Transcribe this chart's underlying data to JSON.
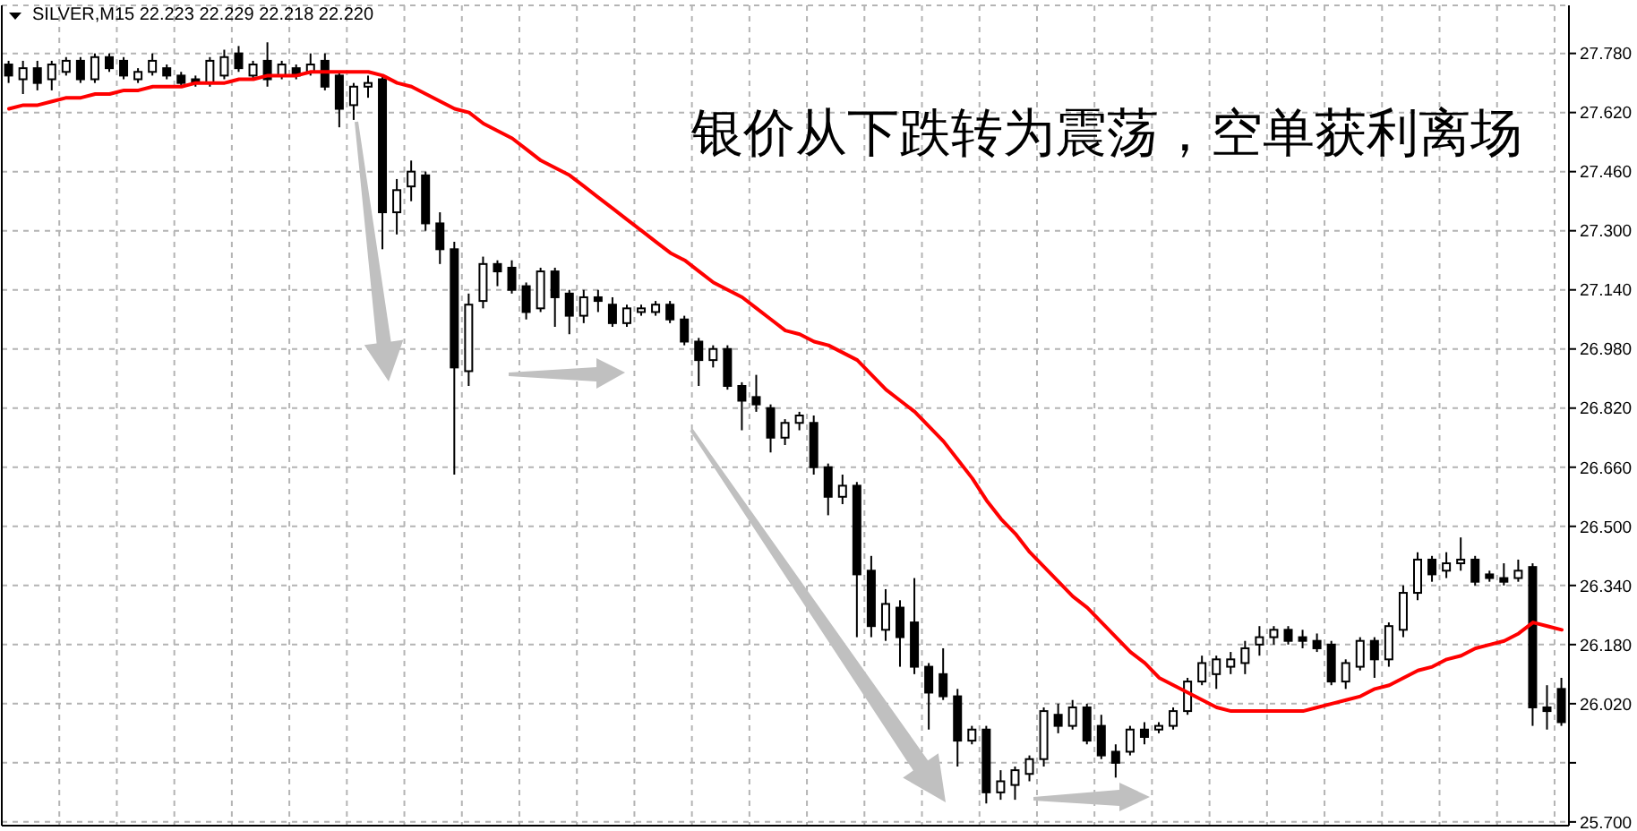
{
  "chart_data": {
    "type": "candlestick",
    "title": "SILVER,M15 22.223 22.229 22.218 22.220",
    "annotations": [
      "银价从下跌转为震荡，空单获利离场"
    ],
    "categories": [
      null,
      null,
      null,
      null,
      null,
      null,
      null,
      null,
      null,
      null,
      null,
      null,
      null,
      null,
      null,
      null,
      null,
      null,
      null,
      null,
      null,
      null,
      null,
      null,
      null,
      null,
      null,
      null,
      null,
      null,
      null,
      null,
      null,
      null,
      null,
      null,
      null,
      null,
      null,
      null,
      null,
      null,
      null,
      null,
      null,
      null,
      null,
      null,
      null,
      null,
      null,
      null,
      null,
      null,
      null,
      null,
      null,
      null,
      null,
      null,
      null,
      null,
      null,
      null,
      null,
      null,
      null,
      null,
      null,
      null,
      null,
      null,
      null,
      null,
      null,
      null,
      null,
      null,
      null,
      null,
      null,
      null,
      null,
      null,
      null,
      null,
      null,
      null,
      null,
      null,
      null,
      null,
      null,
      null,
      null,
      null,
      null,
      null,
      null,
      null,
      null,
      null,
      null,
      null,
      null,
      null,
      null,
      null,
      null
    ],
    "ohlc": [
      [
        27.75,
        27.76,
        27.7,
        27.72
      ],
      [
        27.71,
        27.76,
        27.67,
        27.74
      ],
      [
        27.74,
        27.76,
        27.68,
        27.7
      ],
      [
        27.71,
        27.76,
        27.68,
        27.75
      ],
      [
        27.73,
        27.77,
        27.72,
        27.76
      ],
      [
        27.76,
        27.77,
        27.7,
        27.71
      ],
      [
        27.71,
        27.78,
        27.7,
        27.77
      ],
      [
        27.77,
        27.78,
        27.73,
        27.74
      ],
      [
        27.76,
        27.77,
        27.71,
        27.72
      ],
      [
        27.71,
        27.74,
        27.7,
        27.73
      ],
      [
        27.73,
        27.78,
        27.72,
        27.76
      ],
      [
        27.74,
        27.75,
        27.71,
        27.72
      ],
      [
        27.72,
        27.73,
        27.69,
        27.7
      ],
      [
        27.71,
        27.72,
        27.69,
        27.7
      ],
      [
        27.7,
        27.77,
        27.69,
        27.76
      ],
      [
        27.72,
        27.79,
        27.71,
        27.77
      ],
      [
        27.78,
        27.8,
        27.73,
        27.74
      ],
      [
        27.72,
        27.76,
        27.71,
        27.75
      ],
      [
        27.76,
        27.81,
        27.69,
        27.71
      ],
      [
        27.72,
        27.76,
        27.71,
        27.75
      ],
      [
        27.74,
        27.75,
        27.71,
        27.72
      ],
      [
        27.73,
        27.78,
        27.72,
        27.75
      ],
      [
        27.76,
        27.78,
        27.68,
        27.69
      ],
      [
        27.72,
        27.73,
        27.58,
        27.63
      ],
      [
        27.64,
        27.7,
        27.6,
        27.69
      ],
      [
        27.69,
        27.72,
        27.66,
        27.7
      ],
      [
        27.71,
        27.72,
        27.25,
        27.35
      ],
      [
        27.35,
        27.44,
        27.29,
        27.41
      ],
      [
        27.42,
        27.49,
        27.38,
        27.46
      ],
      [
        27.45,
        27.46,
        27.3,
        27.32
      ],
      [
        27.32,
        27.35,
        27.21,
        27.25
      ],
      [
        27.25,
        27.27,
        26.64,
        26.93
      ],
      [
        26.92,
        27.13,
        26.88,
        27.1
      ],
      [
        27.11,
        27.23,
        27.09,
        27.21
      ],
      [
        27.21,
        27.22,
        27.15,
        27.19
      ],
      [
        27.2,
        27.22,
        27.13,
        27.14
      ],
      [
        27.15,
        27.16,
        27.06,
        27.08
      ],
      [
        27.09,
        27.2,
        27.08,
        27.19
      ],
      [
        27.19,
        27.2,
        27.04,
        27.12
      ],
      [
        27.13,
        27.14,
        27.02,
        27.07
      ],
      [
        27.07,
        27.14,
        27.05,
        27.12
      ],
      [
        27.12,
        27.14,
        27.08,
        27.11
      ],
      [
        27.1,
        27.12,
        27.04,
        27.05
      ],
      [
        27.05,
        27.1,
        27.04,
        27.09
      ],
      [
        27.08,
        27.1,
        27.07,
        27.09
      ],
      [
        27.08,
        27.11,
        27.07,
        27.1
      ],
      [
        27.1,
        27.11,
        27.05,
        27.06
      ],
      [
        27.06,
        27.07,
        26.99,
        27.0
      ],
      [
        27.0,
        27.01,
        26.88,
        26.95
      ],
      [
        26.95,
        26.99,
        26.93,
        26.98
      ],
      [
        26.98,
        26.99,
        26.87,
        26.88
      ],
      [
        26.88,
        26.89,
        26.76,
        26.84
      ],
      [
        26.85,
        26.91,
        26.81,
        26.83
      ],
      [
        26.82,
        26.83,
        26.7,
        26.74
      ],
      [
        26.74,
        26.79,
        26.72,
        26.78
      ],
      [
        26.78,
        26.81,
        26.76,
        26.8
      ],
      [
        26.78,
        26.8,
        26.64,
        26.66
      ],
      [
        26.66,
        26.67,
        26.53,
        26.58
      ],
      [
        26.58,
        26.64,
        26.56,
        26.61
      ],
      [
        26.61,
        26.62,
        26.2,
        26.37
      ],
      [
        26.38,
        26.42,
        26.2,
        26.23
      ],
      [
        26.22,
        26.33,
        26.19,
        26.29
      ],
      [
        26.28,
        26.3,
        26.12,
        26.2
      ],
      [
        26.24,
        26.36,
        26.1,
        26.12
      ],
      [
        26.12,
        26.13,
        25.95,
        26.05
      ],
      [
        26.1,
        26.17,
        26.03,
        26.04
      ],
      [
        26.04,
        26.06,
        25.85,
        25.92
      ],
      [
        25.92,
        25.96,
        25.91,
        25.95
      ],
      [
        25.95,
        25.96,
        25.75,
        25.78
      ],
      [
        25.78,
        25.84,
        25.76,
        25.81
      ],
      [
        25.8,
        25.85,
        25.76,
        25.84
      ],
      [
        25.83,
        25.88,
        25.81,
        25.87
      ],
      [
        25.87,
        26.01,
        25.85,
        26.0
      ],
      [
        25.99,
        26.02,
        25.94,
        25.96
      ],
      [
        25.96,
        26.03,
        25.95,
        26.01
      ],
      [
        26.01,
        26.02,
        25.91,
        25.92
      ],
      [
        25.96,
        25.99,
        25.87,
        25.88
      ],
      [
        25.89,
        25.91,
        25.82,
        25.86
      ],
      [
        25.89,
        25.96,
        25.88,
        25.95
      ],
      [
        25.95,
        25.97,
        25.91,
        25.93
      ],
      [
        25.95,
        25.97,
        25.94,
        25.96
      ],
      [
        25.96,
        26.01,
        25.95,
        26.0
      ],
      [
        26.0,
        26.09,
        25.99,
        26.08
      ],
      [
        26.08,
        26.15,
        26.07,
        26.13
      ],
      [
        26.1,
        26.15,
        26.06,
        26.14
      ],
      [
        26.12,
        26.16,
        26.1,
        26.14
      ],
      [
        26.13,
        26.19,
        26.1,
        26.17
      ],
      [
        26.18,
        26.23,
        26.15,
        26.2
      ],
      [
        26.2,
        26.23,
        26.18,
        26.22
      ],
      [
        26.22,
        26.23,
        26.18,
        26.19
      ],
      [
        26.2,
        26.22,
        26.17,
        26.19
      ],
      [
        26.19,
        26.21,
        26.16,
        26.17
      ],
      [
        26.18,
        26.19,
        26.07,
        26.08
      ],
      [
        26.08,
        26.14,
        26.06,
        26.13
      ],
      [
        26.12,
        26.2,
        26.11,
        26.19
      ],
      [
        26.19,
        26.2,
        26.09,
        26.14
      ],
      [
        26.14,
        26.24,
        26.12,
        26.23
      ],
      [
        26.22,
        26.34,
        26.2,
        26.32
      ],
      [
        26.32,
        26.43,
        26.3,
        26.41
      ],
      [
        26.41,
        26.42,
        26.35,
        26.37
      ],
      [
        26.38,
        26.43,
        26.36,
        26.4
      ],
      [
        26.4,
        26.47,
        26.38,
        26.41
      ],
      [
        26.41,
        26.42,
        26.34,
        26.35
      ],
      [
        26.37,
        26.38,
        26.35,
        26.36
      ],
      [
        26.36,
        26.4,
        26.34,
        26.35
      ],
      [
        26.36,
        26.41,
        26.35,
        26.38
      ],
      [
        26.39,
        26.4,
        25.96,
        26.01
      ],
      [
        26.01,
        26.07,
        25.95,
        26.0
      ],
      [
        26.06,
        26.09,
        25.96,
        25.97
      ]
    ],
    "series": [
      {
        "type": "line",
        "color": "#ff0000",
        "values": [
          27.63,
          27.64,
          27.64,
          27.65,
          27.66,
          27.66,
          27.67,
          27.67,
          27.68,
          27.68,
          27.69,
          27.69,
          27.69,
          27.7,
          27.7,
          27.7,
          27.71,
          27.71,
          27.72,
          27.72,
          27.72,
          27.73,
          27.73,
          27.73,
          27.73,
          27.73,
          27.72,
          27.7,
          27.69,
          27.67,
          27.65,
          27.63,
          27.62,
          27.59,
          27.57,
          27.55,
          27.52,
          27.49,
          27.47,
          27.45,
          27.42,
          27.39,
          27.36,
          27.33,
          27.3,
          27.27,
          27.24,
          27.22,
          27.19,
          27.16,
          27.14,
          27.12,
          27.09,
          27.06,
          27.03,
          27.02,
          27.0,
          26.99,
          26.97,
          26.95,
          26.91,
          26.87,
          26.84,
          26.81,
          26.77,
          26.73,
          26.68,
          26.63,
          26.57,
          26.52,
          26.48,
          26.43,
          26.39,
          26.35,
          26.31,
          26.28,
          26.24,
          26.2,
          26.16,
          26.13,
          26.09,
          26.07,
          26.05,
          26.03,
          26.01,
          26.0,
          26.0,
          26.0,
          26.0,
          26.0,
          26.0,
          26.01,
          26.02,
          26.03,
          26.04,
          26.06,
          26.07,
          26.09,
          26.11,
          26.12,
          26.14,
          26.15,
          26.17,
          26.18,
          26.19,
          26.21,
          26.24,
          26.23,
          26.22
        ]
      }
    ],
    "ylim": [
      25.69,
      27.91
    ],
    "yticks": [
      {
        "value": 27.78,
        "label": "27.780"
      },
      {
        "value": 27.62,
        "label": "27.620"
      },
      {
        "value": 27.46,
        "label": "27.460"
      },
      {
        "value": 27.3,
        "label": "27.300"
      },
      {
        "value": 27.14,
        "label": "27.140"
      },
      {
        "value": 26.98,
        "label": "26.980"
      },
      {
        "value": 26.82,
        "label": "26.820"
      },
      {
        "value": 26.66,
        "label": "26.660"
      },
      {
        "value": 26.5,
        "label": "26.500"
      },
      {
        "value": 26.34,
        "label": "26.340"
      },
      {
        "value": 26.18,
        "label": "26.180"
      },
      {
        "value": 26.02,
        "label": "26.020"
      },
      {
        "value": 25.86,
        "label": null
      },
      {
        "value": 25.7,
        "label": "25.700"
      }
    ],
    "grid": true,
    "tick_labels": "y"
  }
}
